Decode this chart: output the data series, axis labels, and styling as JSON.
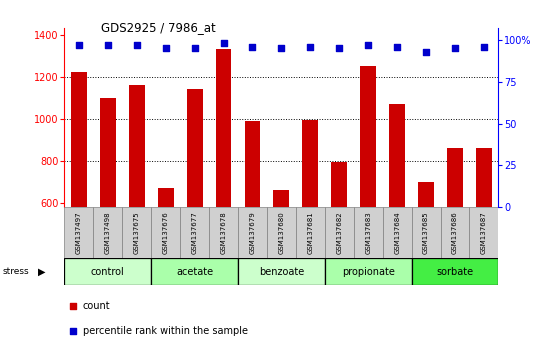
{
  "title": "GDS2925 / 7986_at",
  "samples": [
    "GSM137497",
    "GSM137498",
    "GSM137675",
    "GSM137676",
    "GSM137677",
    "GSM137678",
    "GSM137679",
    "GSM137680",
    "GSM137681",
    "GSM137682",
    "GSM137683",
    "GSM137684",
    "GSM137685",
    "GSM137686",
    "GSM137687"
  ],
  "counts": [
    1220,
    1100,
    1160,
    670,
    1140,
    1330,
    990,
    660,
    995,
    795,
    1250,
    1070,
    700,
    860,
    860
  ],
  "percentiles": [
    97,
    97,
    97,
    95,
    95,
    98,
    96,
    95,
    96,
    95,
    97,
    96,
    93,
    95,
    96
  ],
  "groups": [
    {
      "label": "control",
      "start": 0,
      "end": 3,
      "color": "#ccffcc"
    },
    {
      "label": "acetate",
      "start": 3,
      "end": 6,
      "color": "#aaffaa"
    },
    {
      "label": "benzoate",
      "start": 6,
      "end": 9,
      "color": "#ccffcc"
    },
    {
      "label": "propionate",
      "start": 9,
      "end": 12,
      "color": "#aaffaa"
    },
    {
      "label": "sorbate",
      "start": 12,
      "end": 15,
      "color": "#44ee44"
    }
  ],
  "ylim_left": [
    580,
    1430
  ],
  "ylim_right": [
    0,
    107
  ],
  "yticks_left": [
    600,
    800,
    1000,
    1200,
    1400
  ],
  "yticks_right": [
    0,
    25,
    50,
    75,
    100
  ],
  "bar_color": "#cc0000",
  "dot_color": "#0000cc",
  "label_bg_color": "#d0d0d0",
  "stress_label": "stress",
  "legend_count": "count",
  "legend_percentile": "percentile rank within the sample",
  "bar_bottom": 580
}
